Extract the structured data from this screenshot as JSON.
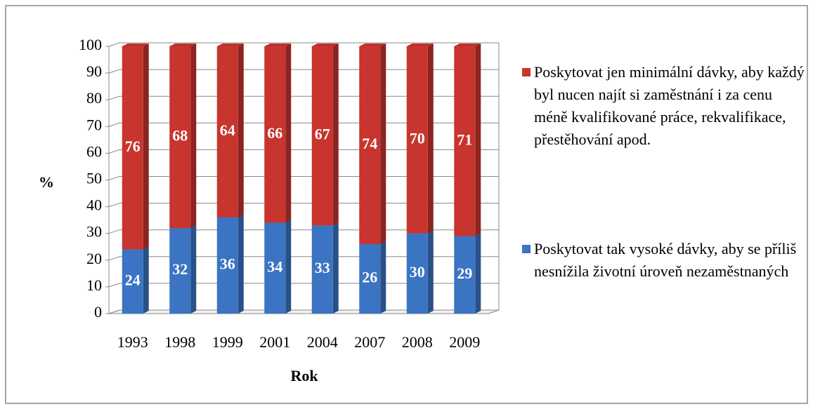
{
  "chart_data": {
    "type": "bar",
    "stacked": true,
    "categories": [
      "1993",
      "1998",
      "1999",
      "2001",
      "2004",
      "2007",
      "2008",
      "2009"
    ],
    "series": [
      {
        "name": "Poskytovat tak vysoké dávky, aby se příliš nesnížila životní úroveň nezaměstnaných",
        "color": "#3b74c2",
        "values": [
          24,
          32,
          36,
          34,
          33,
          26,
          30,
          29
        ]
      },
      {
        "name": "Poskytovat jen minimální dávky, aby každý byl nucen najít si zaměstnání i za cenu méně kvalifikované práce, rekvalifikace, přestěhování apod.",
        "color": "#c8342e",
        "values": [
          76,
          68,
          64,
          66,
          67,
          74,
          70,
          71
        ]
      }
    ],
    "ylabel": "%",
    "xlabel": "Rok",
    "ylim": [
      0,
      100
    ],
    "yticks": [
      0,
      10,
      20,
      30,
      40,
      50,
      60,
      70,
      80,
      90,
      100
    ],
    "grid": true,
    "legend": "right"
  }
}
